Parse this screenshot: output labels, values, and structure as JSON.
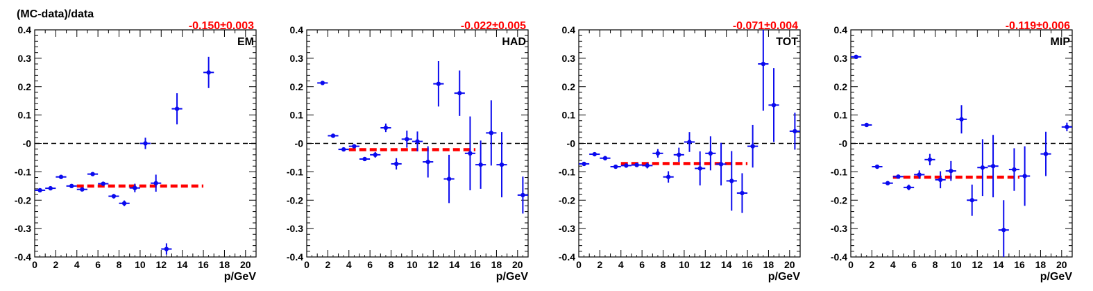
{
  "figure": {
    "y_title": "(MC-data)/data"
  },
  "colors": {
    "points": "#0a0aee",
    "fit": "#ff0000",
    "zero_line": "#000000",
    "frame": "#000000",
    "background": "#ffffff"
  },
  "chart_data": [
    {
      "type": "scatter",
      "panel_label": "EM",
      "fit_text": "-0.150±0.003",
      "xlabel": "p/GeV",
      "ylabel": "(MC-data)/data",
      "xlim": [
        0,
        21
      ],
      "ylim": [
        -0.4,
        0.4
      ],
      "x_ticks": [
        0,
        2,
        4,
        6,
        8,
        10,
        12,
        14,
        16,
        18,
        20
      ],
      "y_ticks": [
        -0.4,
        -0.3,
        -0.2,
        -0.1,
        0,
        0.1,
        0.2,
        0.3,
        0.4
      ],
      "y_tick_labels": [
        "-0.4",
        "-0.3",
        "-0.2",
        "-0.1",
        "-0",
        "0.1",
        "0.2",
        "0.3",
        "0.4"
      ],
      "reference_line": {
        "y": 0,
        "style": "dashed"
      },
      "fit": {
        "y": -0.15,
        "x_range": [
          4,
          16
        ],
        "style": "dashed"
      },
      "points": [
        {
          "x": 0.5,
          "y": -0.165,
          "yerr": 0.004
        },
        {
          "x": 1.5,
          "y": -0.158,
          "yerr": 0.004
        },
        {
          "x": 2.5,
          "y": -0.118,
          "yerr": 0.004
        },
        {
          "x": 3.5,
          "y": -0.15,
          "yerr": 0.004
        },
        {
          "x": 4.5,
          "y": -0.162,
          "yerr": 0.005
        },
        {
          "x": 5.5,
          "y": -0.108,
          "yerr": 0.005
        },
        {
          "x": 6.5,
          "y": -0.142,
          "yerr": 0.006
        },
        {
          "x": 7.5,
          "y": -0.186,
          "yerr": 0.008
        },
        {
          "x": 8.5,
          "y": -0.211,
          "yerr": 0.01
        },
        {
          "x": 9.5,
          "y": -0.157,
          "yerr": 0.015
        },
        {
          "x": 10.5,
          "y": 0.0,
          "yerr": 0.02
        },
        {
          "x": 11.5,
          "y": -0.14,
          "yerr": 0.03
        },
        {
          "x": 12.5,
          "y": -0.372,
          "yerr": 0.02
        },
        {
          "x": 13.5,
          "y": 0.122,
          "yerr": 0.055
        },
        {
          "x": 16.5,
          "y": 0.25,
          "yerr": 0.055
        }
      ]
    },
    {
      "type": "scatter",
      "panel_label": "HAD",
      "fit_text": "-0.022±0.005",
      "xlabel": "p/GeV",
      "ylabel": "",
      "xlim": [
        0,
        21
      ],
      "ylim": [
        -0.4,
        0.4
      ],
      "x_ticks": [
        0,
        2,
        4,
        6,
        8,
        10,
        12,
        14,
        16,
        18,
        20
      ],
      "y_ticks": [
        -0.4,
        -0.3,
        -0.2,
        -0.1,
        0,
        0.1,
        0.2,
        0.3,
        0.4
      ],
      "y_tick_labels": [
        "-0.4",
        "-0.3",
        "-0.2",
        "-0.1",
        "-0",
        "0.1",
        "0.2",
        "0.3",
        "0.4"
      ],
      "reference_line": {
        "y": 0,
        "style": "dashed"
      },
      "fit": {
        "y": -0.022,
        "x_range": [
          4,
          16
        ],
        "style": "dashed"
      },
      "points": [
        {
          "x": 1.5,
          "y": 0.213,
          "yerr": 0.004
        },
        {
          "x": 2.5,
          "y": 0.027,
          "yerr": 0.004
        },
        {
          "x": 3.5,
          "y": -0.021,
          "yerr": 0.004
        },
        {
          "x": 4.5,
          "y": -0.01,
          "yerr": 0.005
        },
        {
          "x": 5.5,
          "y": -0.055,
          "yerr": 0.006
        },
        {
          "x": 6.5,
          "y": -0.04,
          "yerr": 0.01
        },
        {
          "x": 7.5,
          "y": 0.055,
          "yerr": 0.015
        },
        {
          "x": 8.5,
          "y": -0.072,
          "yerr": 0.02
        },
        {
          "x": 9.5,
          "y": 0.015,
          "yerr": 0.03
        },
        {
          "x": 10.5,
          "y": 0.007,
          "yerr": 0.035
        },
        {
          "x": 11.5,
          "y": -0.065,
          "yerr": 0.055
        },
        {
          "x": 12.5,
          "y": 0.21,
          "yerr": 0.08
        },
        {
          "x": 13.5,
          "y": -0.125,
          "yerr": 0.085
        },
        {
          "x": 14.5,
          "y": 0.177,
          "yerr": 0.08
        },
        {
          "x": 15.5,
          "y": -0.035,
          "yerr": 0.13
        },
        {
          "x": 16.5,
          "y": -0.075,
          "yerr": 0.085
        },
        {
          "x": 17.5,
          "y": 0.037,
          "yerr": 0.115
        },
        {
          "x": 18.5,
          "y": -0.075,
          "yerr": 0.115
        },
        {
          "x": 20.5,
          "y": -0.182,
          "yerr": 0.065
        }
      ]
    },
    {
      "type": "scatter",
      "panel_label": "TOT",
      "fit_text": "-0.071±0.004",
      "xlabel": "p/GeV",
      "ylabel": "",
      "xlim": [
        0,
        21
      ],
      "ylim": [
        -0.4,
        0.4
      ],
      "x_ticks": [
        0,
        2,
        4,
        6,
        8,
        10,
        12,
        14,
        16,
        18,
        20
      ],
      "y_ticks": [
        -0.4,
        -0.3,
        -0.2,
        -0.1,
        0,
        0.1,
        0.2,
        0.3,
        0.4
      ],
      "y_tick_labels": [
        "-0.4",
        "-0.3",
        "-0.2",
        "-0.1",
        "-0",
        "0.1",
        "0.2",
        "0.3",
        "0.4"
      ],
      "reference_line": {
        "y": 0,
        "style": "dashed"
      },
      "fit": {
        "y": -0.071,
        "x_range": [
          4,
          16
        ],
        "style": "dashed"
      },
      "points": [
        {
          "x": 0.5,
          "y": -0.072,
          "yerr": 0.004
        },
        {
          "x": 1.5,
          "y": -0.038,
          "yerr": 0.004
        },
        {
          "x": 2.5,
          "y": -0.052,
          "yerr": 0.004
        },
        {
          "x": 3.5,
          "y": -0.082,
          "yerr": 0.004
        },
        {
          "x": 4.5,
          "y": -0.078,
          "yerr": 0.005
        },
        {
          "x": 5.5,
          "y": -0.076,
          "yerr": 0.006
        },
        {
          "x": 6.5,
          "y": -0.078,
          "yerr": 0.01
        },
        {
          "x": 7.5,
          "y": -0.035,
          "yerr": 0.015
        },
        {
          "x": 8.5,
          "y": -0.118,
          "yerr": 0.02
        },
        {
          "x": 9.5,
          "y": -0.04,
          "yerr": 0.025
        },
        {
          "x": 10.5,
          "y": 0.005,
          "yerr": 0.035
        },
        {
          "x": 11.5,
          "y": -0.088,
          "yerr": 0.06
        },
        {
          "x": 12.5,
          "y": -0.035,
          "yerr": 0.06
        },
        {
          "x": 13.5,
          "y": -0.073,
          "yerr": 0.075
        },
        {
          "x": 14.5,
          "y": -0.132,
          "yerr": 0.105
        },
        {
          "x": 15.5,
          "y": -0.175,
          "yerr": 0.07
        },
        {
          "x": 16.5,
          "y": -0.01,
          "yerr": 0.075
        },
        {
          "x": 17.5,
          "y": 0.28,
          "yerr": 0.165
        },
        {
          "x": 18.5,
          "y": 0.135,
          "yerr": 0.13
        },
        {
          "x": 20.5,
          "y": 0.043,
          "yerr": 0.065
        }
      ]
    },
    {
      "type": "scatter",
      "panel_label": "MIP",
      "fit_text": "-0.119±0.006",
      "xlabel": "p/GeV",
      "ylabel": "",
      "xlim": [
        0,
        21
      ],
      "ylim": [
        -0.4,
        0.4
      ],
      "x_ticks": [
        0,
        2,
        4,
        6,
        8,
        10,
        12,
        14,
        16,
        18,
        20
      ],
      "y_ticks": [
        -0.4,
        -0.3,
        -0.2,
        -0.1,
        0,
        0.1,
        0.2,
        0.3,
        0.4
      ],
      "y_tick_labels": [
        "-0.4",
        "-0.3",
        "-0.2",
        "-0.1",
        "-0",
        "0.1",
        "0.2",
        "0.3",
        "0.4"
      ],
      "reference_line": {
        "y": 0,
        "style": "dashed"
      },
      "fit": {
        "y": -0.119,
        "x_range": [
          4,
          16
        ],
        "style": "dashed"
      },
      "points": [
        {
          "x": 0.5,
          "y": 0.305,
          "yerr": 0.004
        },
        {
          "x": 1.5,
          "y": 0.065,
          "yerr": 0.004
        },
        {
          "x": 2.5,
          "y": -0.082,
          "yerr": 0.004
        },
        {
          "x": 3.5,
          "y": -0.14,
          "yerr": 0.005
        },
        {
          "x": 4.5,
          "y": -0.117,
          "yerr": 0.006
        },
        {
          "x": 5.5,
          "y": -0.155,
          "yerr": 0.01
        },
        {
          "x": 6.5,
          "y": -0.11,
          "yerr": 0.015
        },
        {
          "x": 7.5,
          "y": -0.057,
          "yerr": 0.02
        },
        {
          "x": 8.5,
          "y": -0.128,
          "yerr": 0.03
        },
        {
          "x": 9.5,
          "y": -0.097,
          "yerr": 0.035
        },
        {
          "x": 10.5,
          "y": 0.085,
          "yerr": 0.05
        },
        {
          "x": 11.5,
          "y": -0.2,
          "yerr": 0.055
        },
        {
          "x": 12.5,
          "y": -0.085,
          "yerr": 0.1
        },
        {
          "x": 13.5,
          "y": -0.08,
          "yerr": 0.11
        },
        {
          "x": 14.5,
          "y": -0.305,
          "yerr": 0.105
        },
        {
          "x": 15.5,
          "y": -0.092,
          "yerr": 0.075
        },
        {
          "x": 16.5,
          "y": -0.115,
          "yerr": 0.105
        },
        {
          "x": 18.5,
          "y": -0.037,
          "yerr": 0.078
        },
        {
          "x": 20.5,
          "y": 0.058,
          "yerr": 0.015
        }
      ]
    }
  ]
}
